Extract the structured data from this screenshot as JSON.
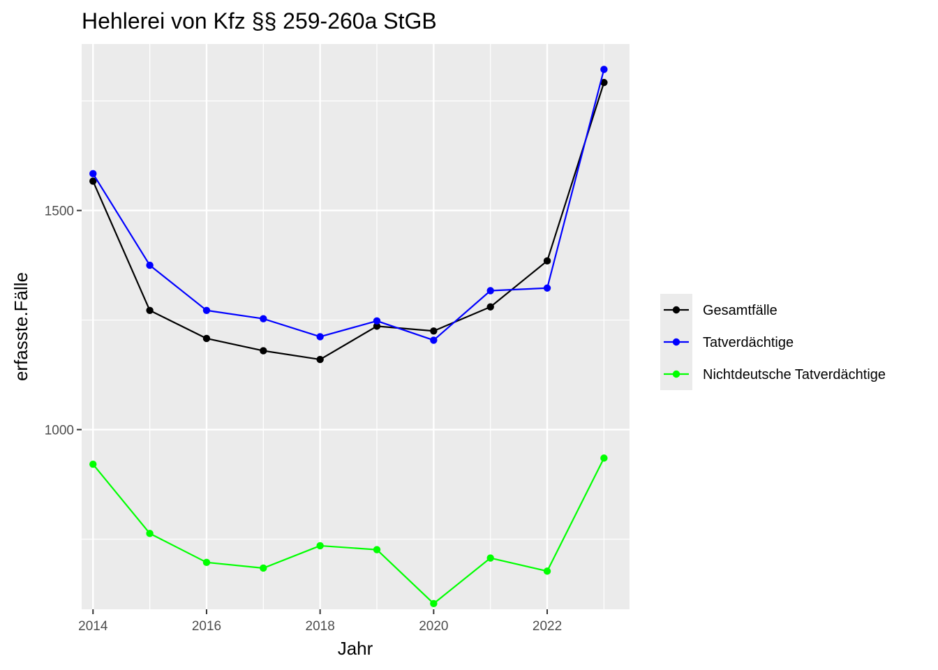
{
  "chart_data": {
    "type": "line",
    "title": "Hehlerei von Kfz §§ 259-260a StGB",
    "xlabel": "Jahr",
    "ylabel": "erfasste.Fälle",
    "x": [
      2014,
      2015,
      2016,
      2017,
      2018,
      2019,
      2020,
      2021,
      2022,
      2023
    ],
    "xlim": [
      2013.8,
      2023.45
    ],
    "ylim": [
      590,
      1880
    ],
    "x_ticks": [
      2014,
      2016,
      2018,
      2020,
      2022
    ],
    "x_tick_labels": [
      "2014",
      "2016",
      "2018",
      "2020",
      "2022"
    ],
    "y_ticks": [
      1000,
      1500
    ],
    "y_tick_labels": [
      "1000",
      "1500"
    ],
    "grid": true,
    "legend_position": "right",
    "series": [
      {
        "name": "Gesamtfälle",
        "color": "#000000",
        "values": [
          1567,
          1272,
          1208,
          1180,
          1160,
          1236,
          1225,
          1280,
          1385,
          1792
        ]
      },
      {
        "name": "Tatverdächtige",
        "color": "#0000ff",
        "values": [
          1584,
          1375,
          1272,
          1253,
          1212,
          1248,
          1204,
          1317,
          1323,
          1822
        ]
      },
      {
        "name": "Nichtdeutsche Tatverdächtige",
        "color": "#00ff00",
        "values": [
          921,
          763,
          697,
          684,
          735,
          726,
          603,
          707,
          677,
          935
        ]
      }
    ]
  }
}
